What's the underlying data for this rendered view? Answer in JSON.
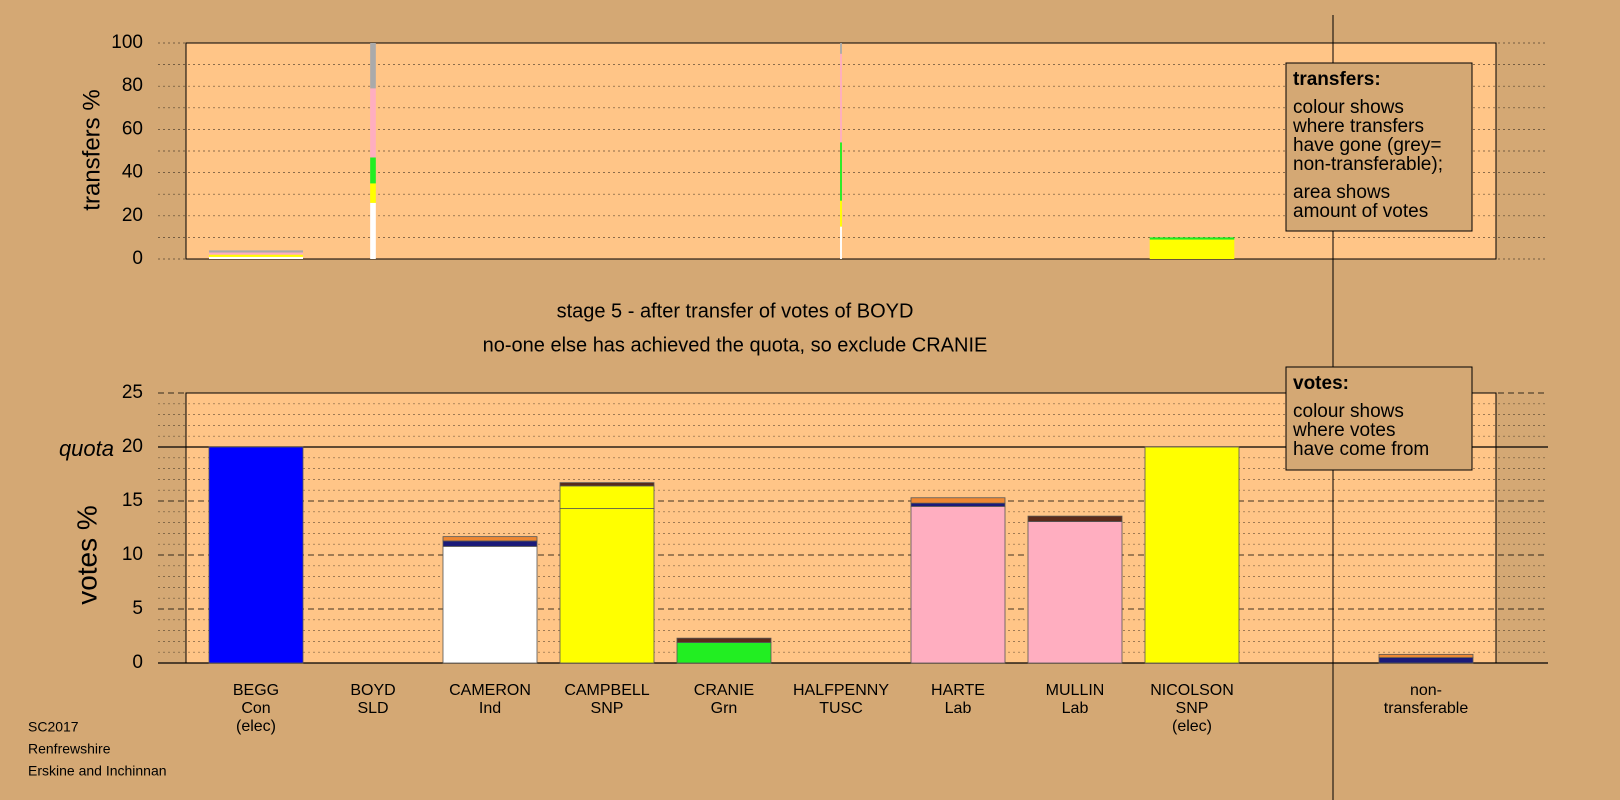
{
  "page": {
    "background": "#d4a874",
    "plot_background": "#ffc587",
    "stage_title": "stage 5 - after transfer of votes of BOYD",
    "stage_subtitle": "no-one else has achieved the quota, so exclude CRANIE",
    "footer": [
      "SC2017",
      "Renfrewshire",
      "Erskine and Inchinnan"
    ]
  },
  "legends": {
    "transfers": {
      "title": "transfers:",
      "lines1": [
        "colour shows",
        "where transfers",
        "have gone (grey=",
        "non-transferable);"
      ],
      "lines2": [
        "area shows",
        "amount of votes"
      ]
    },
    "votes": {
      "title": "votes:",
      "lines": [
        "colour shows",
        "where votes",
        "have come from"
      ]
    }
  },
  "colors": {
    "Con": "#0000ff",
    "SLD": "#ffff00",
    "Ind": "#ffffff",
    "SNP": "#ffff00",
    "Grn": "#22ee22",
    "TUSC": "#cc3333",
    "Lab": "#ffaec0",
    "nontransferable": "#aaaaaa",
    "navy": "#1a1a7a",
    "orange": "#ee8833",
    "brown": "#5a2a1a"
  },
  "chart_data": [
    {
      "type": "bar",
      "name": "transfers",
      "ylabel": "transfers %",
      "ylim": [
        0,
        100
      ],
      "yticks": [
        0,
        20,
        40,
        60,
        80,
        100
      ],
      "columns": [
        {
          "candidate": "BEGG",
          "width": 1.0,
          "segments": [
            {
              "color": "Ind",
              "to": 1
            },
            {
              "color": "SNP",
              "to": 2
            },
            {
              "color": "Lab",
              "to": 3
            },
            {
              "color": "nontransferable",
              "to": 4
            }
          ]
        },
        {
          "candidate": "BOYD",
          "width": 0.06,
          "segments": [
            {
              "color": "Ind",
              "to": 26
            },
            {
              "color": "SNP",
              "to": 35
            },
            {
              "color": "Grn",
              "to": 47
            },
            {
              "color": "Lab",
              "to": 79
            },
            {
              "color": "nontransferable",
              "to": 100
            }
          ]
        },
        {
          "candidate": "HALFPENNY",
          "width": 0.02,
          "segments": [
            {
              "color": "Ind",
              "to": 15
            },
            {
              "color": "SNP",
              "to": 27
            },
            {
              "color": "Grn",
              "to": 54
            },
            {
              "color": "Lab",
              "to": 95
            },
            {
              "color": "nontransferable",
              "to": 100
            }
          ]
        },
        {
          "candidate": "NICOLSON",
          "width": 0.9,
          "segments": [
            {
              "color": "SNP",
              "to": 9
            },
            {
              "color": "Grn",
              "to": 10
            }
          ]
        }
      ]
    },
    {
      "type": "bar",
      "name": "votes",
      "ylabel": "votes %",
      "quota_label": "quota",
      "quota": 20,
      "ylim": [
        0,
        25
      ],
      "yticks": [
        0,
        5,
        10,
        15,
        20,
        25
      ],
      "categories": [
        {
          "name": "BEGG",
          "party": "Con",
          "note": "(elec)"
        },
        {
          "name": "BOYD",
          "party": "SLD",
          "note": ""
        },
        {
          "name": "CAMERON",
          "party": "Ind",
          "note": ""
        },
        {
          "name": "CAMPBELL",
          "party": "SNP",
          "note": ""
        },
        {
          "name": "CRANIE",
          "party": "Grn",
          "note": ""
        },
        {
          "name": "HALFPENNY",
          "party": "TUSC",
          "note": ""
        },
        {
          "name": "HARTE",
          "party": "Lab",
          "note": ""
        },
        {
          "name": "MULLIN",
          "party": "Lab",
          "note": ""
        },
        {
          "name": "NICOLSON",
          "party": "SNP",
          "note": "(elec)"
        },
        {
          "name": "",
          "party": "",
          "note": ""
        },
        {
          "name": "non-",
          "party": "transferable",
          "note": ""
        }
      ],
      "bars": [
        {
          "segments": [
            {
              "color": "Con",
              "to": 20.0
            }
          ]
        },
        {
          "segments": []
        },
        {
          "segments": [
            {
              "color": "Ind",
              "to": 10.8
            },
            {
              "color": "navy",
              "to": 11.3
            },
            {
              "color": "orange",
              "to": 11.7
            }
          ]
        },
        {
          "segments": [
            {
              "color": "SNP",
              "to": 14.3
            },
            {
              "color": "SNP",
              "to": 16.4
            },
            {
              "color": "brown",
              "to": 16.7
            }
          ]
        },
        {
          "segments": [
            {
              "color": "Grn",
              "to": 1.9
            },
            {
              "color": "brown",
              "to": 2.3
            }
          ]
        },
        {
          "segments": []
        },
        {
          "segments": [
            {
              "color": "Lab",
              "to": 14.5
            },
            {
              "color": "navy",
              "to": 14.8
            },
            {
              "color": "orange",
              "to": 15.3
            }
          ]
        },
        {
          "segments": [
            {
              "color": "Lab",
              "to": 13.1
            },
            {
              "color": "brown",
              "to": 13.6
            }
          ]
        },
        {
          "segments": [
            {
              "color": "SNP",
              "to": 20.0
            }
          ]
        },
        {
          "segments": []
        },
        {
          "segments": [
            {
              "color": "navy",
              "to": 0.5
            },
            {
              "color": "orange",
              "to": 0.8
            }
          ]
        }
      ]
    }
  ]
}
